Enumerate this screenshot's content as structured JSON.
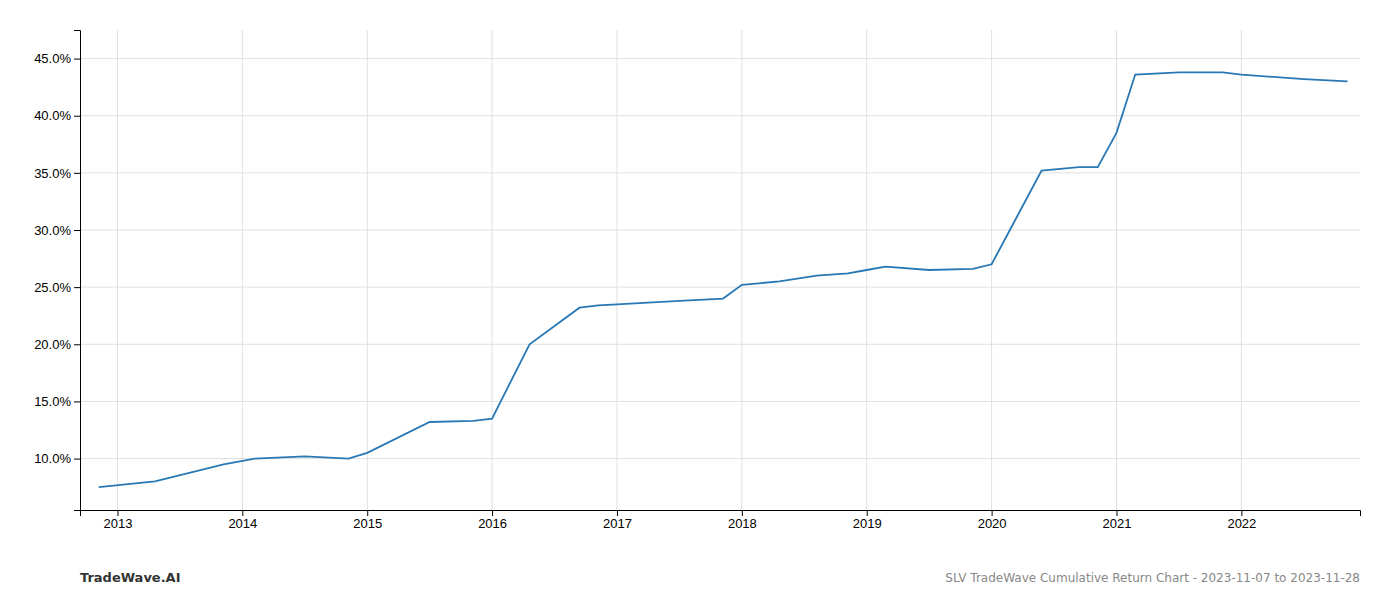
{
  "chart_data": {
    "type": "line",
    "x": [
      2012.85,
      2013.3,
      2013.85,
      2014.1,
      2014.5,
      2014.85,
      2015.0,
      2015.5,
      2015.85,
      2016.0,
      2016.3,
      2016.7,
      2016.85,
      2017.0,
      2017.5,
      2017.85,
      2018.0,
      2018.3,
      2018.6,
      2018.85,
      2019.0,
      2019.15,
      2019.5,
      2019.85,
      2020.0,
      2020.4,
      2020.7,
      2020.85,
      2021.0,
      2021.15,
      2021.5,
      2021.85,
      2022.0,
      2022.5,
      2022.85
    ],
    "values": [
      7.5,
      8.0,
      9.5,
      10.0,
      10.2,
      10.0,
      10.5,
      13.2,
      13.3,
      13.5,
      20.0,
      23.2,
      23.4,
      23.5,
      23.8,
      24.0,
      25.2,
      25.5,
      26.0,
      26.2,
      26.5,
      26.8,
      26.5,
      26.6,
      27.0,
      35.2,
      35.5,
      35.5,
      38.5,
      43.6,
      43.8,
      43.8,
      43.6,
      43.2,
      43.0
    ],
    "color": "#2878b5",
    "xlim": [
      2012.7,
      2022.95
    ],
    "ylim": [
      5.5,
      47.5
    ],
    "xticks": [
      2013,
      2014,
      2015,
      2016,
      2017,
      2018,
      2019,
      2020,
      2021,
      2022
    ],
    "yticks": [
      {
        "value": 10.0,
        "label": "10.0%"
      },
      {
        "value": 15.0,
        "label": "15.0%"
      },
      {
        "value": 20.0,
        "label": "20.0%"
      },
      {
        "value": 25.0,
        "label": "25.0%"
      },
      {
        "value": 30.0,
        "label": "30.0%"
      },
      {
        "value": 35.0,
        "label": "35.0%"
      },
      {
        "value": 40.0,
        "label": "40.0%"
      },
      {
        "value": 45.0,
        "label": "45.0%"
      }
    ],
    "grid": true,
    "annotations": [
      "TradeWave.AI",
      "SLV TradeWave Cumulative Return Chart - 2023-11-07 to 2023-11-28"
    ]
  }
}
